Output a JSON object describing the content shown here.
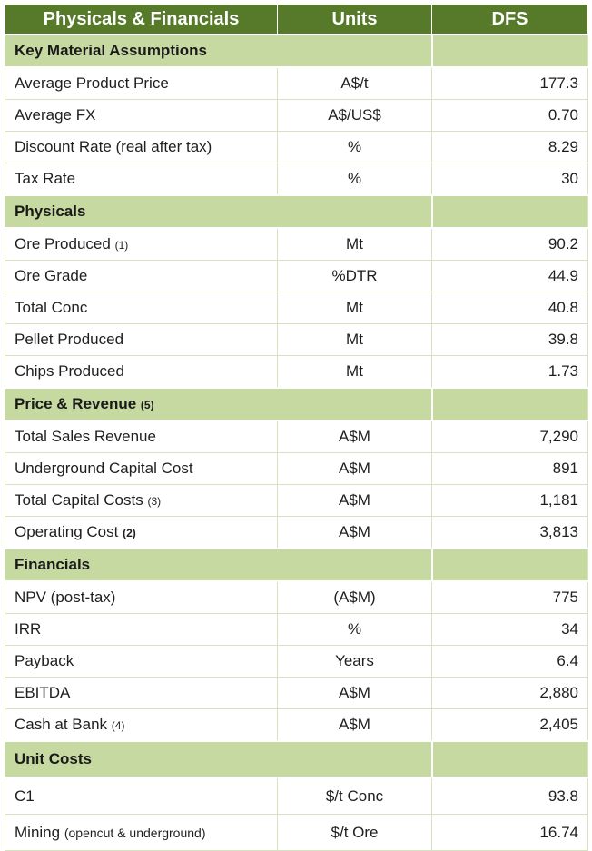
{
  "header": {
    "col1": "Physicals & Financials",
    "col2": "Units",
    "col3": "DFS"
  },
  "sections": [
    {
      "title": "Key Material Assumptions",
      "rows": [
        {
          "label": "Average Product Price",
          "note": "",
          "unit": "A$/t",
          "value": "177.3"
        },
        {
          "label": "Average FX",
          "note": "",
          "unit": "A$/US$",
          "value": "0.70"
        },
        {
          "label": "Discount Rate (real after tax)",
          "note": "",
          "unit": "%",
          "value": "8.29"
        },
        {
          "label": "Tax Rate",
          "note": "",
          "unit": "%",
          "value": "30"
        }
      ]
    },
    {
      "title": "Physicals",
      "rows": [
        {
          "label": "Ore Produced",
          "note": "(1)",
          "unit": "Mt",
          "value": "90.2"
        },
        {
          "label": "Ore Grade",
          "note": "",
          "unit": "%DTR",
          "value": "44.9"
        },
        {
          "label": "Total Conc",
          "note": "",
          "unit": "Mt",
          "value": "40.8"
        },
        {
          "label": "Pellet Produced",
          "note": "",
          "unit": "Mt",
          "value": "39.8"
        },
        {
          "label": "Chips Produced",
          "note": "",
          "unit": "Mt",
          "value": "1.73"
        }
      ]
    },
    {
      "title": "Price & Revenue",
      "title_note": "(5)",
      "rows": [
        {
          "label": "Total Sales Revenue",
          "note": "",
          "unit": "A$M",
          "value": "7,290"
        },
        {
          "label": "Underground Capital Cost",
          "note": "",
          "unit": "A$M",
          "value": "891"
        },
        {
          "label": "Total Capital Costs",
          "note": "(3)",
          "unit": "A$M",
          "value": "1,181"
        },
        {
          "label": "Operating Cost",
          "note": "(2)",
          "unit": "A$M",
          "value": "3,813"
        }
      ]
    },
    {
      "title": "Financials",
      "rows": [
        {
          "label": "NPV (post-tax)",
          "note": "",
          "unit": "(A$M)",
          "value": "775"
        },
        {
          "label": "IRR",
          "note": "",
          "unit": "%",
          "value": "34"
        },
        {
          "label": "Payback",
          "note": "",
          "unit": "Years",
          "value": "6.4"
        },
        {
          "label": "EBITDA",
          "note": "",
          "unit": "A$M",
          "value": "2,880"
        },
        {
          "label": "Cash at Bank",
          "note": "(4)",
          "unit": "A$M",
          "value": "2,405"
        }
      ]
    },
    {
      "title": "Unit Costs",
      "rows": [
        {
          "label": "C1",
          "note": "",
          "unit": "$/t Conc",
          "value": "93.8"
        },
        {
          "label": "Mining",
          "note": "(opencut & underground)",
          "unit": "$/t Ore",
          "value": "16.74"
        }
      ]
    }
  ],
  "colors": {
    "header_bg": "#577a2a",
    "section_bg": "#c6d9a1"
  }
}
